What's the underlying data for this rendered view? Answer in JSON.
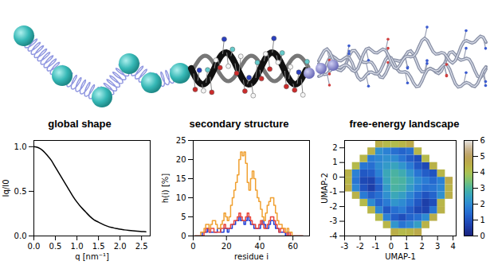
{
  "chart_data": [
    {
      "type": "line",
      "title": "global shape",
      "x_label": "q [nm⁻¹]",
      "y_label": "Iq/I0",
      "color": "#000000",
      "x": [
        0,
        0.1,
        0.2,
        0.3,
        0.4,
        0.5,
        0.6,
        0.7,
        0.8,
        0.9,
        1.0,
        1.1,
        1.2,
        1.3,
        1.4,
        1.5,
        1.6,
        1.7,
        1.8,
        1.9,
        2.0,
        2.1,
        2.2,
        2.3,
        2.4,
        2.5,
        2.6
      ],
      "values": [
        1.0,
        0.99,
        0.96,
        0.91,
        0.85,
        0.77,
        0.69,
        0.61,
        0.53,
        0.45,
        0.38,
        0.32,
        0.27,
        0.22,
        0.18,
        0.155,
        0.13,
        0.11,
        0.095,
        0.085,
        0.075,
        0.068,
        0.062,
        0.057,
        0.053,
        0.05,
        0.047
      ],
      "xlim": [
        0,
        2.7
      ],
      "ylim": [
        0,
        1.07
      ],
      "xticks": [
        {
          "value": 0,
          "label": "0.0"
        },
        0.5,
        {
          "value": 1,
          "label": "1.0"
        },
        1.5,
        {
          "value": 2,
          "label": "2.0"
        },
        2.5
      ],
      "yticks": [
        {
          "value": 0,
          "label": "0.0"
        },
        0.5,
        {
          "value": 1,
          "label": "1.0"
        }
      ]
    },
    {
      "type": "line",
      "title": "secondary structure",
      "x_label": "residue i",
      "y_label": "h(i) [%]",
      "line_style": "step",
      "x": [
        1,
        2,
        3,
        4,
        5,
        6,
        7,
        8,
        9,
        10,
        11,
        12,
        13,
        14,
        15,
        16,
        17,
        18,
        19,
        20,
        21,
        22,
        23,
        24,
        25,
        26,
        27,
        28,
        29,
        30,
        31,
        32,
        33,
        34,
        35,
        36,
        37,
        38,
        39,
        40,
        41,
        42,
        43,
        44,
        45,
        46,
        47,
        48,
        49,
        50,
        51,
        52,
        53,
        54,
        55,
        56,
        57,
        58,
        59,
        60,
        61,
        62,
        63,
        64,
        65,
        66
      ],
      "series": [
        {
          "color": "#1f3fd6",
          "values": [
            0,
            0,
            0,
            0,
            0,
            1,
            1,
            1,
            2,
            1,
            1,
            1,
            1,
            1,
            2,
            2,
            1,
            1,
            2,
            2,
            1,
            2,
            2,
            3,
            3,
            4,
            4,
            5,
            4,
            4,
            3,
            4,
            5,
            4,
            3,
            3,
            2,
            2,
            2,
            2,
            3,
            4,
            3,
            2,
            2,
            3,
            4,
            4,
            3,
            2,
            2,
            1,
            1,
            1,
            1,
            0,
            1,
            0,
            0,
            0,
            0,
            0,
            0,
            0,
            0,
            0
          ]
        },
        {
          "color": "#e8443a",
          "values": [
            0,
            0,
            0,
            0,
            0,
            0,
            1,
            2,
            2,
            1,
            2,
            2,
            1,
            1,
            1,
            1,
            2,
            2,
            3,
            2,
            2,
            2,
            3,
            3,
            4,
            4,
            5,
            6,
            5,
            4,
            4,
            5,
            6,
            5,
            4,
            3,
            3,
            2,
            2,
            3,
            4,
            3,
            2,
            2,
            3,
            4,
            5,
            5,
            4,
            3,
            2,
            1,
            2,
            2,
            1,
            1,
            0,
            1,
            0,
            0,
            0,
            0,
            0,
            0,
            0,
            0
          ]
        },
        {
          "color": "#f0a030",
          "values": [
            0,
            0,
            0,
            0,
            1,
            1,
            2,
            3,
            3,
            2,
            3,
            4,
            4,
            3,
            2,
            2,
            3,
            4,
            6,
            5,
            4,
            5,
            8,
            10,
            12,
            14,
            16,
            20,
            22,
            21,
            22,
            19,
            14,
            12,
            15,
            17,
            15,
            12,
            10,
            9,
            7,
            5,
            4,
            6,
            8,
            9,
            10,
            10,
            8,
            6,
            4,
            3,
            3,
            2,
            2,
            1,
            2,
            1,
            1,
            0,
            0,
            0,
            0,
            0,
            0,
            0
          ]
        }
      ],
      "xlim": [
        0,
        70
      ],
      "ylim": [
        0,
        25
      ],
      "xticks": [
        0,
        20,
        40,
        60
      ],
      "yticks": [
        0,
        5,
        10,
        15,
        20,
        25
      ]
    },
    {
      "type": "heatmap",
      "title": "free-energy landscape",
      "x_label": "UMAP-1",
      "y_label": "UMAP-2",
      "x_edges": [
        -3,
        -2.5,
        -2,
        -1.5,
        -1,
        -0.5,
        0,
        0.5,
        1,
        1.5,
        2,
        2.5,
        3,
        3.5,
        4
      ],
      "y_edges": [
        -4,
        -3.5,
        -3,
        -2.5,
        -2,
        -1.5,
        -1,
        -0.5,
        0,
        0.5,
        1,
        1.5,
        2,
        2.5
      ],
      "z": [
        [
          null,
          null,
          null,
          null,
          null,
          null,
          4.5,
          4.2,
          4.3,
          4.6,
          null,
          null,
          null,
          null
        ],
        [
          null,
          null,
          null,
          null,
          null,
          4.3,
          2.2,
          1.6,
          1.9,
          2.4,
          4.4,
          null,
          null,
          null
        ],
        [
          null,
          null,
          null,
          null,
          4.2,
          1.8,
          1.2,
          0.9,
          1.3,
          1.5,
          2.0,
          4.5,
          null,
          null
        ],
        [
          null,
          null,
          null,
          4.3,
          1.9,
          1.1,
          1.5,
          1.7,
          1.2,
          0.8,
          0.7,
          1.6,
          4.4,
          null
        ],
        [
          null,
          null,
          4.2,
          2.0,
          1.3,
          1.7,
          2.2,
          2.0,
          1.6,
          1.1,
          0.6,
          0.9,
          4.3,
          null
        ],
        [
          null,
          4.4,
          1.7,
          1.2,
          1.5,
          2.1,
          2.6,
          2.4,
          1.9,
          1.4,
          1.0,
          1.3,
          2.1,
          4.5
        ],
        [
          4.5,
          1.9,
          1.0,
          0.6,
          1.2,
          2.3,
          2.9,
          2.8,
          2.3,
          1.8,
          1.5,
          1.6,
          1.9,
          4.4
        ],
        [
          4.3,
          1.6,
          0.8,
          0.7,
          1.4,
          2.5,
          3.0,
          2.9,
          2.5,
          2.0,
          1.7,
          1.4,
          1.8,
          4.6
        ],
        [
          4.4,
          1.8,
          1.1,
          1.2,
          1.8,
          2.6,
          2.9,
          2.7,
          2.2,
          1.6,
          1.2,
          1.0,
          4.3,
          null
        ],
        [
          null,
          4.2,
          1.6,
          1.5,
          2.0,
          2.3,
          2.5,
          2.2,
          1.7,
          1.1,
          0.8,
          4.4,
          null,
          null
        ],
        [
          null,
          null,
          4.3,
          1.7,
          1.9,
          2.1,
          2.0,
          1.6,
          1.2,
          0.9,
          4.2,
          null,
          null,
          null
        ],
        [
          null,
          null,
          null,
          4.4,
          2.1,
          1.8,
          1.5,
          1.3,
          1.5,
          4.3,
          null,
          null,
          null,
          null
        ],
        [
          null,
          null,
          null,
          null,
          4.5,
          4.2,
          4.1,
          4.3,
          4.6,
          null,
          null,
          null,
          null,
          null
        ]
      ],
      "xlim": [
        -3,
        4.2
      ],
      "ylim": [
        -4,
        2.5
      ],
      "xticks": [
        -3,
        -2,
        -1,
        0,
        1,
        2,
        3,
        4
      ],
      "yticks": [
        -4,
        -3,
        -2,
        -1,
        0,
        1,
        2
      ],
      "colorbar": {
        "range": [
          0,
          6
        ],
        "ticks": [
          0,
          1,
          2,
          3,
          4,
          5,
          6
        ]
      }
    }
  ]
}
